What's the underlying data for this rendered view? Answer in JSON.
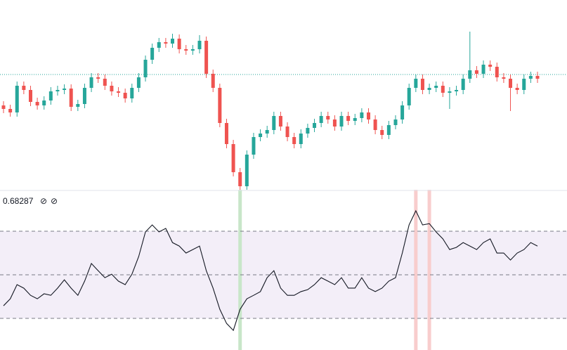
{
  "chart_data": [
    {
      "type": "candlestick",
      "ylim": [
        0,
        270
      ],
      "up_color": "#26a69a",
      "down_color": "#ef5350",
      "reference_line": 164,
      "reference_color": "#26a69a",
      "open": [
        120,
        115,
        110,
        148,
        142,
        125,
        120,
        127,
        140,
        142,
        144,
        118,
        122,
        145,
        160,
        158,
        148,
        140,
        138,
        130,
        145,
        160,
        185,
        202,
        210,
        208,
        215,
        200,
        198,
        200,
        212,
        165,
        145,
        95,
        65,
        25,
        5,
        50,
        75,
        80,
        85,
        105,
        90,
        75,
        65,
        80,
        88,
        95,
        105,
        100,
        90,
        105,
        98,
        102,
        110,
        100,
        85,
        78,
        92,
        100,
        120,
        145,
        158,
        142,
        145,
        148,
        138,
        140,
        142,
        158,
        170,
        165,
        178,
        175,
        160,
        158,
        145,
        142,
        158,
        162
      ],
      "close": [
        115,
        110,
        148,
        142,
        125,
        120,
        127,
        140,
        142,
        144,
        118,
        122,
        145,
        160,
        158,
        148,
        140,
        138,
        130,
        145,
        160,
        185,
        202,
        210,
        208,
        215,
        200,
        198,
        200,
        212,
        165,
        145,
        95,
        65,
        25,
        5,
        50,
        75,
        80,
        85,
        105,
        90,
        75,
        65,
        80,
        88,
        95,
        105,
        100,
        90,
        105,
        98,
        102,
        110,
        100,
        85,
        78,
        92,
        100,
        120,
        145,
        158,
        142,
        145,
        148,
        138,
        140,
        142,
        158,
        170,
        165,
        178,
        175,
        160,
        158,
        145,
        142,
        158,
        162,
        158
      ],
      "high": [
        126,
        121,
        154,
        154,
        148,
        131,
        133,
        146,
        148,
        150,
        150,
        128,
        151,
        166,
        166,
        164,
        154,
        146,
        144,
        151,
        166,
        191,
        208,
        216,
        216,
        222,
        221,
        206,
        206,
        220,
        218,
        171,
        151,
        101,
        71,
        31,
        56,
        81,
        86,
        91,
        111,
        111,
        96,
        81,
        86,
        94,
        101,
        111,
        111,
        106,
        111,
        111,
        108,
        116,
        116,
        106,
        91,
        98,
        106,
        126,
        151,
        164,
        164,
        151,
        154,
        154,
        146,
        148,
        164,
        225,
        176,
        184,
        184,
        181,
        166,
        164,
        151,
        164,
        168,
        168
      ],
      "low": [
        109,
        104,
        104,
        136,
        119,
        114,
        114,
        121,
        134,
        136,
        112,
        112,
        116,
        139,
        152,
        142,
        134,
        132,
        124,
        124,
        139,
        154,
        179,
        196,
        202,
        202,
        194,
        192,
        192,
        194,
        159,
        139,
        89,
        59,
        19,
        0,
        0,
        44,
        69,
        74,
        79,
        84,
        69,
        59,
        59,
        74,
        82,
        89,
        94,
        84,
        84,
        92,
        92,
        96,
        94,
        79,
        72,
        72,
        86,
        94,
        114,
        139,
        136,
        136,
        139,
        132,
        115,
        134,
        136,
        152,
        159,
        159,
        169,
        154,
        152,
        112,
        136,
        136,
        152,
        152
      ]
    },
    {
      "type": "line",
      "label": "0.68287",
      "status_icons": [
        "⊘",
        "⊘"
      ],
      "color": "#131722",
      "ylim": [
        15.5,
        88.4
      ],
      "levels": [
        30,
        50,
        70
      ],
      "band_color": "#f3eef8",
      "highlights": [
        {
          "index": 35,
          "color": "#c8e6c9"
        },
        {
          "index": 61,
          "color": "#f8cdcd"
        },
        {
          "index": 63,
          "color": "#f8cdcd"
        }
      ],
      "values": [
        35.8,
        39.0,
        45.5,
        43.9,
        40.6,
        39.0,
        41.3,
        40.6,
        43.9,
        47.7,
        43.9,
        40.6,
        47.1,
        55.2,
        51.9,
        48.7,
        50.3,
        47.1,
        45.5,
        50.3,
        58.4,
        69.7,
        72.9,
        69.7,
        71.3,
        64.8,
        63.2,
        60.0,
        61.6,
        63.2,
        51.9,
        43.9,
        34.2,
        27.7,
        24.5,
        34.2,
        39.0,
        40.6,
        42.3,
        48.7,
        51.9,
        43.9,
        40.6,
        40.6,
        42.3,
        43.2,
        45.5,
        48.7,
        47.1,
        45.5,
        48.7,
        43.9,
        43.9,
        48.7,
        43.9,
        42.3,
        43.9,
        47.1,
        48.7,
        60.0,
        72.9,
        79.4,
        72.9,
        73.5,
        69.7,
        66.5,
        61.6,
        62.6,
        64.8,
        63.2,
        61.6,
        64.8,
        66.5,
        60.0,
        60.0,
        56.8,
        60.0,
        61.6,
        64.8,
        63.2
      ]
    }
  ]
}
